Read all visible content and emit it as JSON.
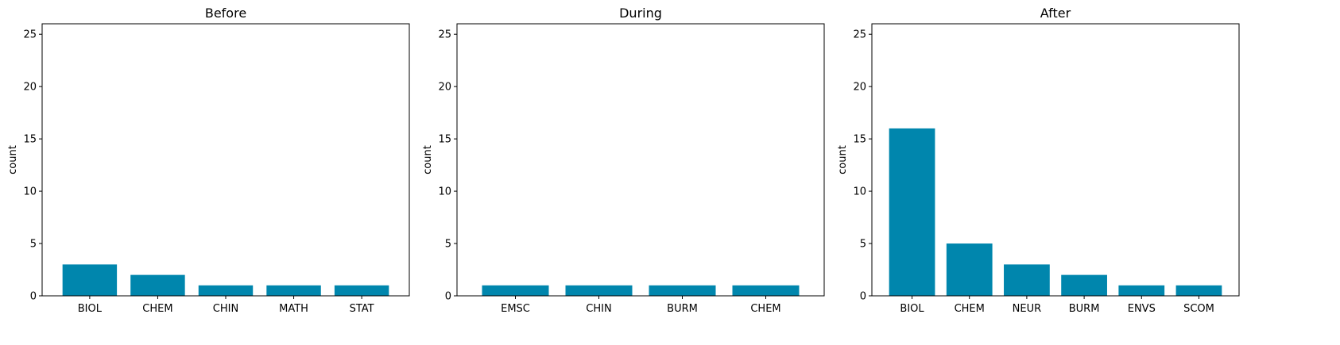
{
  "chart_data": [
    {
      "type": "bar",
      "title": "Before",
      "xlabel": "",
      "ylabel": "count",
      "ylim": [
        0,
        26
      ],
      "yticks": [
        0,
        5,
        10,
        15,
        20,
        25
      ],
      "categories": [
        "BIOL",
        "CHEM",
        "CHIN",
        "MATH",
        "STAT"
      ],
      "values": [
        3,
        2,
        1,
        1,
        1
      ],
      "color": "#0086ad",
      "grid": false
    },
    {
      "type": "bar",
      "title": "During",
      "xlabel": "",
      "ylabel": "count",
      "ylim": [
        0,
        26
      ],
      "yticks": [
        0,
        5,
        10,
        15,
        20,
        25
      ],
      "categories": [
        "EMSC",
        "CHIN",
        "BURM",
        "CHEM"
      ],
      "values": [
        1,
        1,
        1,
        1
      ],
      "color": "#0086ad",
      "grid": false
    },
    {
      "type": "bar",
      "title": "After",
      "xlabel": "",
      "ylabel": "count",
      "ylim": [
        0,
        26
      ],
      "yticks": [
        0,
        5,
        10,
        15,
        20,
        25
      ],
      "categories": [
        "BIOL",
        "CHEM",
        "NEUR",
        "BURM",
        "ENVS",
        "SCOM"
      ],
      "values": [
        16,
        5,
        3,
        2,
        1,
        1
      ],
      "color": "#0086ad",
      "grid": false
    }
  ]
}
